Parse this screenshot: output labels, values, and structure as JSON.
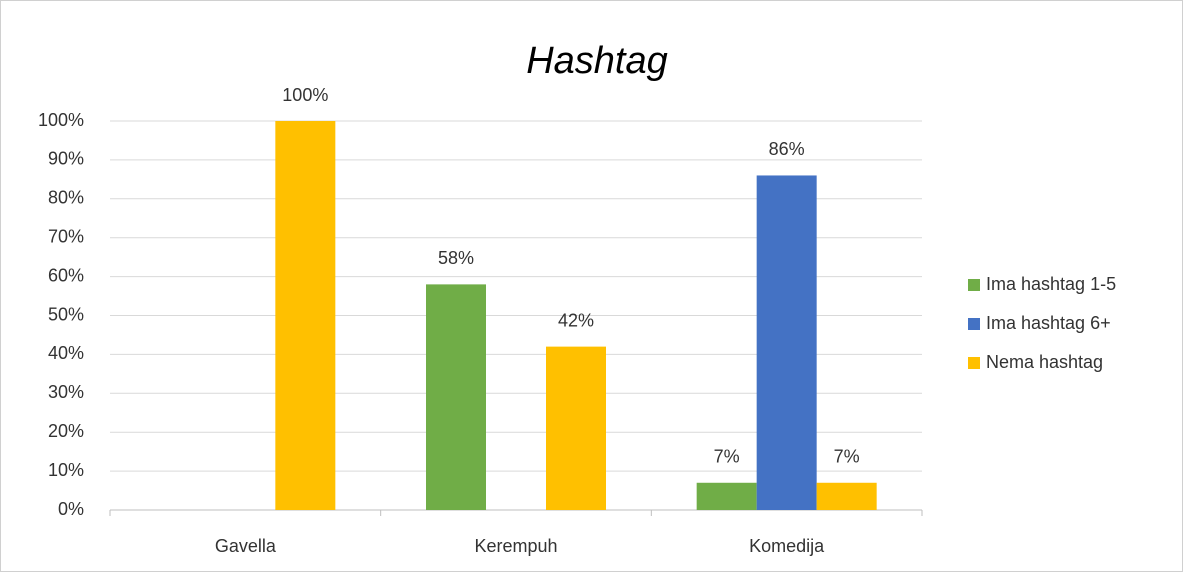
{
  "chart_data": {
    "type": "bar",
    "title": "Hashtag",
    "categories": [
      "Gavella",
      "Kerempuh",
      "Komedija"
    ],
    "series": [
      {
        "name": "Ima hashtag 1-5",
        "color": "#70ad47",
        "values": [
          null,
          58,
          7
        ],
        "value_labels": [
          null,
          "58%",
          "7%"
        ]
      },
      {
        "name": "Ima hashtag 6+",
        "color": "#4472c4",
        "values": [
          null,
          null,
          86
        ],
        "value_labels": [
          null,
          null,
          "86%"
        ]
      },
      {
        "name": "Nema hashtag",
        "color": "#ffc000",
        "values": [
          100,
          42,
          7
        ],
        "value_labels": [
          "100%",
          "42%",
          "7%"
        ]
      }
    ],
    "ylim": [
      0,
      100
    ],
    "yticks": [
      {
        "value": 0,
        "label": "0%"
      },
      {
        "value": 10,
        "label": "10%"
      },
      {
        "value": 20,
        "label": "20%"
      },
      {
        "value": 30,
        "label": "30%"
      },
      {
        "value": 40,
        "label": "40%"
      },
      {
        "value": 50,
        "label": "50%"
      },
      {
        "value": 60,
        "label": "60%"
      },
      {
        "value": 70,
        "label": "70%"
      },
      {
        "value": 80,
        "label": "80%"
      },
      {
        "value": 90,
        "label": "90%"
      },
      {
        "value": 100,
        "label": "100%"
      }
    ],
    "grid": true,
    "legend": "right"
  }
}
